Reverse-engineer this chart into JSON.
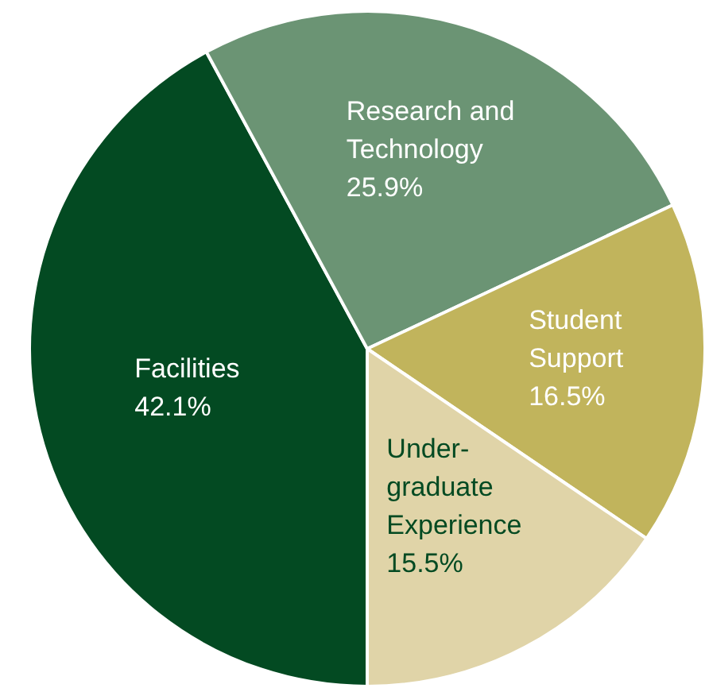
{
  "chart_data": {
    "type": "pie",
    "categories": [
      "Facilities",
      "Research and Technology",
      "Student Support",
      "Under-graduate Experience"
    ],
    "values": [
      42.1,
      25.9,
      16.5,
      15.5
    ],
    "value_labels": [
      "42.1%",
      "25.9%",
      "16.5%",
      "15.5%"
    ],
    "colors": [
      "#034a22",
      "#6b9474",
      "#c1b45c",
      "#e0d4a8"
    ],
    "legend": false
  }
}
